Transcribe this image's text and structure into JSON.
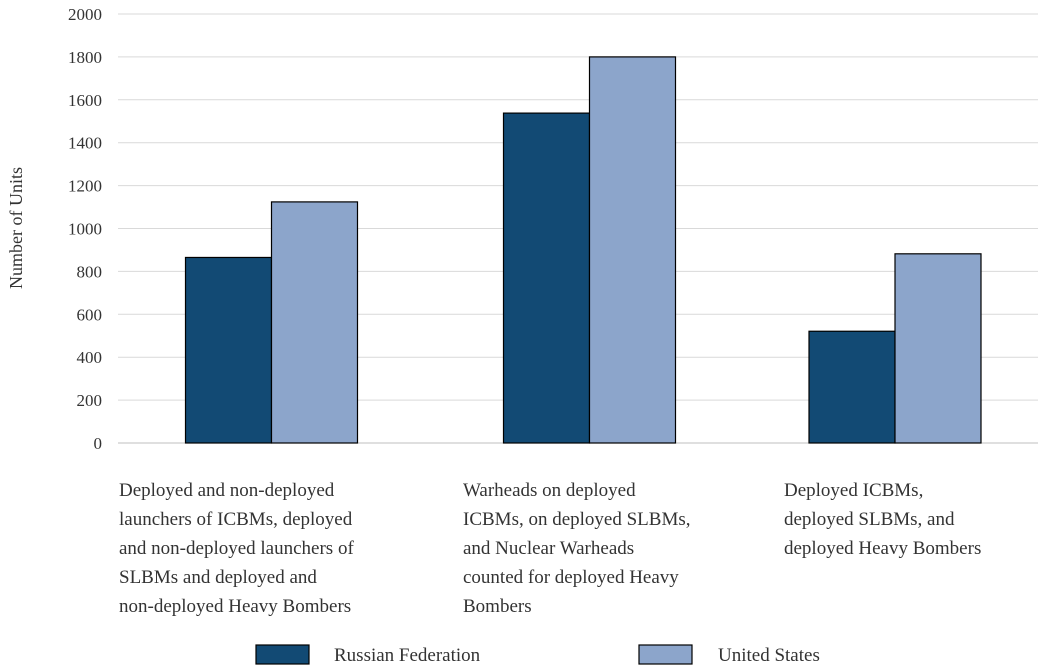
{
  "chart_data": {
    "type": "bar",
    "title": "",
    "xlabel": "",
    "ylabel": "Number of Units",
    "ylim": [
      0,
      2000
    ],
    "yticks": [
      0,
      200,
      400,
      600,
      800,
      1000,
      1200,
      1400,
      1600,
      1800,
      2000
    ],
    "grid": true,
    "legend_position": "bottom",
    "categories": [
      [
        "Deployed and non-deployed",
        "launchers of ICBMs, deployed",
        "and non-deployed launchers of",
        "SLBMs and deployed and",
        "non-deployed Heavy Bombers"
      ],
      [
        "Warheads on deployed",
        "ICBMs, on deployed SLBMs,",
        "and Nuclear Warheads",
        "counted for deployed Heavy",
        "Bombers"
      ],
      [
        "Deployed ICBMs,",
        "deployed SLBMs, and",
        "deployed Heavy Bombers"
      ]
    ],
    "series": [
      {
        "name": "Russian Federation",
        "color": "#124a74",
        "values": [
          865,
          1538,
          521
        ]
      },
      {
        "name": "United States",
        "color": "#8ca5cb",
        "values": [
          1124,
          1800,
          882
        ]
      }
    ]
  }
}
